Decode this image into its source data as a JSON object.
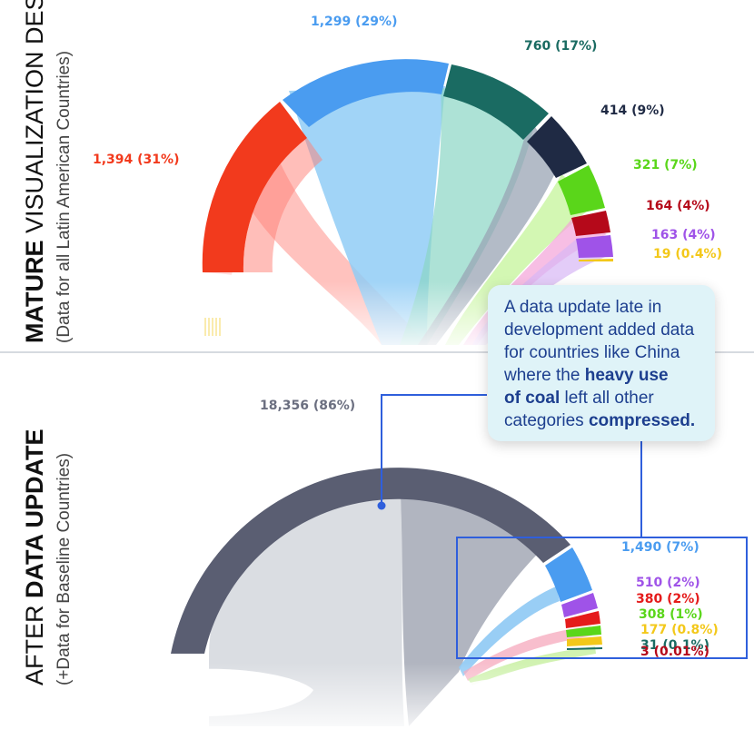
{
  "panels": {
    "top": {
      "title_bold": "MATURE",
      "title_rest": " VISUALIZATION DESIGN",
      "subtitle": "(Data for all Latin American Countries)",
      "labels": [
        {
          "text": "1,394 (31%)",
          "color": "#f23a1d"
        },
        {
          "text": "1,299 (29%)",
          "color": "#4a9cf0"
        },
        {
          "text": "760 (17%)",
          "color": "#1a6b62"
        },
        {
          "text": "414 (9%)",
          "color": "#1f2a44"
        },
        {
          "text": "321 (7%)",
          "color": "#5ad61a"
        },
        {
          "text": "164 (4%)",
          "color": "#b5091a"
        },
        {
          "text": "163 (4%)",
          "color": "#9f53e8"
        },
        {
          "text": "19 (0.4%)",
          "color": "#f3c81a"
        }
      ]
    },
    "bottom": {
      "title_rest": "AFTER ",
      "title_bold": "DATA UPDATE",
      "subtitle": "(+Data for Baseline Countries)",
      "labels": [
        {
          "text": "18,356 (86%)",
          "color": "#6b6f80"
        },
        {
          "text": "1,490 (7%)",
          "color": "#4a9cf0"
        },
        {
          "text": "510 (2%)",
          "color": "#9f53e8"
        },
        {
          "text": "380 (2%)",
          "color": "#e51b1b"
        },
        {
          "text": "308 (1%)",
          "color": "#5ad61a"
        },
        {
          "text": "177 (0.8%)",
          "color": "#f3c81a"
        },
        {
          "text": "31 (0.1%)",
          "color": "#1a6b62"
        },
        {
          "text": "3 (0.01%)",
          "color": "#b5091a"
        }
      ]
    }
  },
  "callout": {
    "line1": "A data update late in",
    "line2": "development added data",
    "line3": "for countries like China",
    "line4a": "where the ",
    "line4b": "heavy use",
    "line5a": "of coal",
    "line5b": " left all other",
    "line6a": "categories ",
    "line6b": "compressed."
  },
  "colors": {
    "accent": "#2f5fdc",
    "callout_bg": "#dff3f8",
    "callout_text": "#1d3f8f"
  }
}
